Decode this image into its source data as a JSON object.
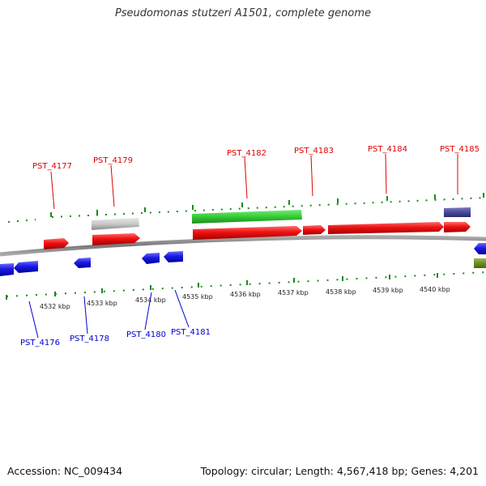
{
  "title": "Pseudomonas stutzeri A1501, complete genome",
  "footer": {
    "accession": "Accession: NC_009434",
    "topology": "Topology: circular; Length: 4,567,418 bp; Genes: 4,201"
  },
  "colors": {
    "forward_gene": "#ee1111",
    "reverse_gene": "#1a1ae0",
    "green_feature": "#33cc33",
    "grey_feature": "#c8c8c8",
    "navy_feature": "#4a4a9a",
    "olive_feature": "#6b8e23",
    "tick": "#1a8a1a",
    "backbone": "#888888"
  },
  "tick_labels": [
    "4532 kbp",
    "4533 kbp",
    "4534 kbp",
    "4535 kbp",
    "4536 kbp",
    "4537 kbp",
    "4538 kbp",
    "4539 kbp",
    "4540 kbp"
  ],
  "gene_labels_forward": [
    "PST_4177",
    "PST_4179",
    "PST_4182",
    "PST_4183",
    "PST_4184",
    "PST_4185"
  ],
  "gene_labels_reverse": [
    "PST_4176",
    "PST_4178",
    "PST_4180",
    "PST_4181"
  ]
}
